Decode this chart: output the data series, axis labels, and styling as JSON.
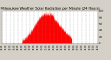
{
  "title": "Milwaukee Weather Solar Radiation per Minute (24 Hours)",
  "title_fontsize": 3.5,
  "background_color": "#d4d0c8",
  "plot_bg_color": "#ffffff",
  "bar_color": "#ff0000",
  "grid_color": "#888888",
  "grid_style": "--",
  "num_points": 1440,
  "peak_minute": 650,
  "peak_value": 900,
  "ylim": [
    0,
    1000
  ],
  "xlim": [
    0,
    1440
  ],
  "xtick_interval": 60,
  "xlabel_fontsize": 2.0,
  "ylabel_fontsize": 2.0,
  "seed": 12345
}
